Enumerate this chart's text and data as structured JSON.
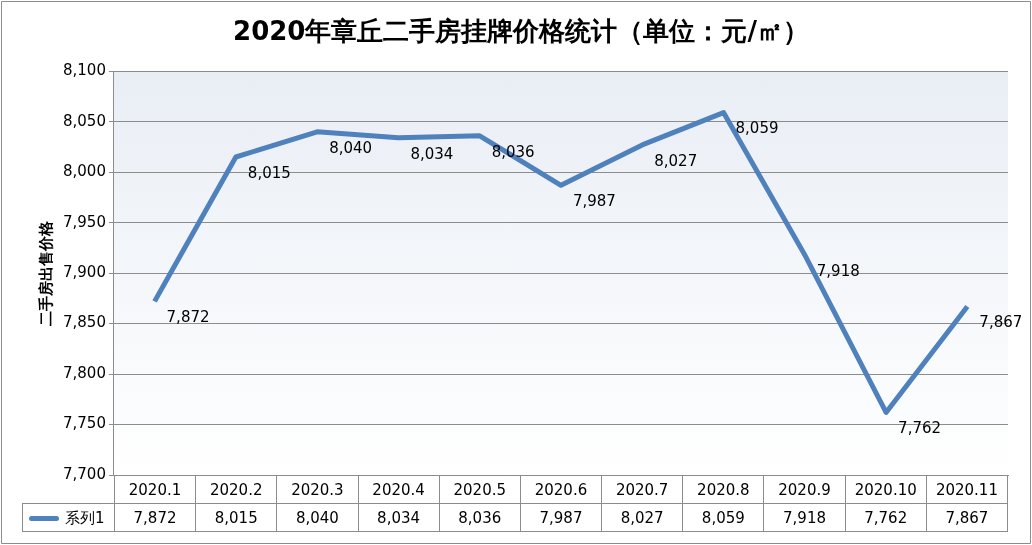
{
  "chart_data": {
    "type": "line",
    "title": "2020年章丘二手房挂牌价格统计（单位：元/㎡）",
    "ylabel": "二手房出售价格",
    "categories": [
      "2020.1",
      "2020.2",
      "2020.3",
      "2020.4",
      "2020.5",
      "2020.6",
      "2020.7",
      "2020.8",
      "2020.9",
      "2020.10",
      "2020.11"
    ],
    "series": [
      {
        "name": "系列1",
        "color": "#4f81bd",
        "values": [
          7872,
          8015,
          8040,
          8034,
          8036,
          7987,
          8027,
          8059,
          7918,
          7762,
          7867
        ],
        "value_labels": [
          "7,872",
          "8,015",
          "8,040",
          "8,034",
          "8,036",
          "7,987",
          "8,027",
          "8,059",
          "7,918",
          "7,762",
          "7,867"
        ]
      }
    ],
    "ylim": [
      7700,
      8100
    ],
    "yticks": [
      {
        "value": 7700,
        "label": "7,700"
      },
      {
        "value": 7750,
        "label": "7,750"
      },
      {
        "value": 7800,
        "label": "7,800"
      },
      {
        "value": 7850,
        "label": "7,850"
      },
      {
        "value": 7900,
        "label": "7,900"
      },
      {
        "value": 7950,
        "label": "7,950"
      },
      {
        "value": 8000,
        "label": "8,000"
      },
      {
        "value": 8050,
        "label": "8,050"
      },
      {
        "value": 8100,
        "label": "8,100"
      }
    ],
    "grid": "y",
    "legend": "bottom",
    "data_labels": true,
    "marker": "none",
    "line_style": "solid"
  }
}
